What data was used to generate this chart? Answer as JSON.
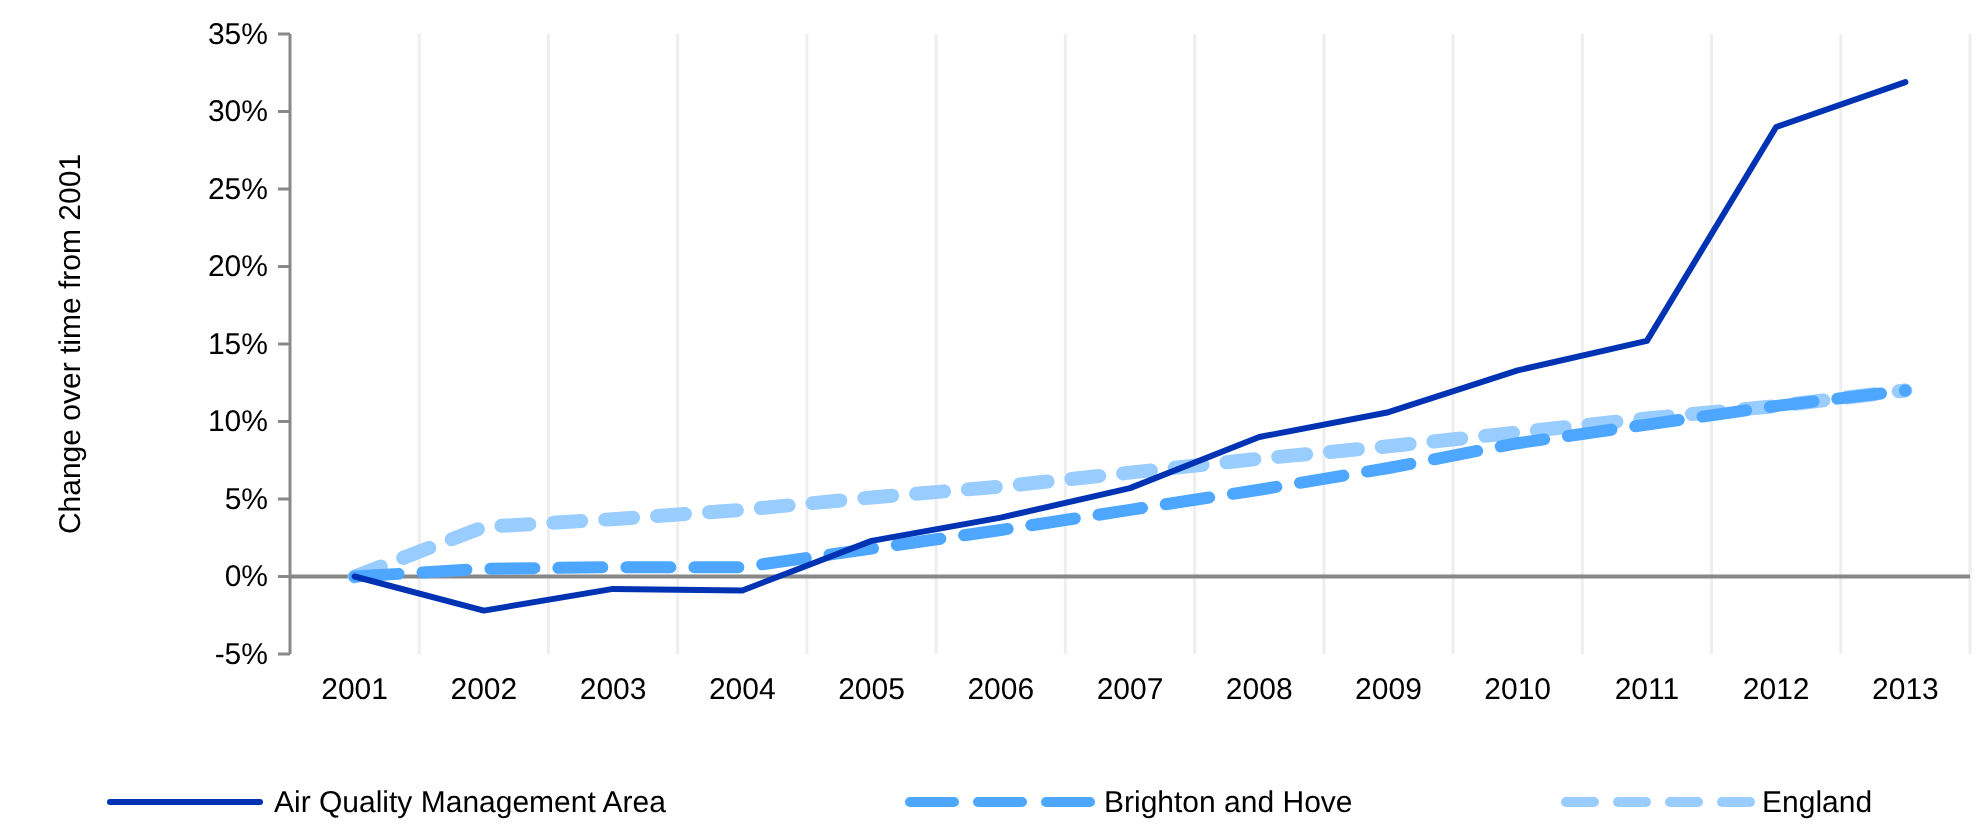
{
  "chart_data": {
    "type": "line",
    "ylabel": "Change over  time from 2001",
    "categories": [
      "2001",
      "2002",
      "2003",
      "2004",
      "2005",
      "2006",
      "2007",
      "2008",
      "2009",
      "2010",
      "2011",
      "2012",
      "2013"
    ],
    "series": [
      {
        "name": "Air Quality Management Area",
        "color": "#0033b4",
        "line_style": "solid",
        "values": [
          0,
          -2.2,
          -0.8,
          -0.9,
          2.3,
          3.8,
          5.7,
          9.0,
          10.6,
          13.3,
          15.2,
          29.0,
          31.9
        ]
      },
      {
        "name": "Brighton and Hove",
        "color": "#4da6ff",
        "line_style": "dashed",
        "values": [
          0,
          0.5,
          0.6,
          0.6,
          1.8,
          3.0,
          4.3,
          5.6,
          7.0,
          8.6,
          9.8,
          11.0,
          12.0
        ]
      },
      {
        "name": "England",
        "color": "#99ccff",
        "line_style": "dotted",
        "values": [
          0,
          3.2,
          3.7,
          4.3,
          5.1,
          5.8,
          6.7,
          7.6,
          8.4,
          9.3,
          10.2,
          11.0,
          12.0
        ]
      }
    ],
    "ylim": [
      -5,
      35
    ],
    "yticks": [
      {
        "value": -5,
        "label": "-5%"
      },
      {
        "value": 0,
        "label": "0%"
      },
      {
        "value": 5,
        "label": "5%"
      },
      {
        "value": 10,
        "label": "10%"
      },
      {
        "value": 15,
        "label": "15%"
      },
      {
        "value": 20,
        "label": "20%"
      },
      {
        "value": 25,
        "label": "25%"
      },
      {
        "value": 30,
        "label": "30%"
      },
      {
        "value": 35,
        "label": "35%"
      }
    ],
    "grid": "x",
    "legend": "bottom",
    "marker": "none"
  }
}
